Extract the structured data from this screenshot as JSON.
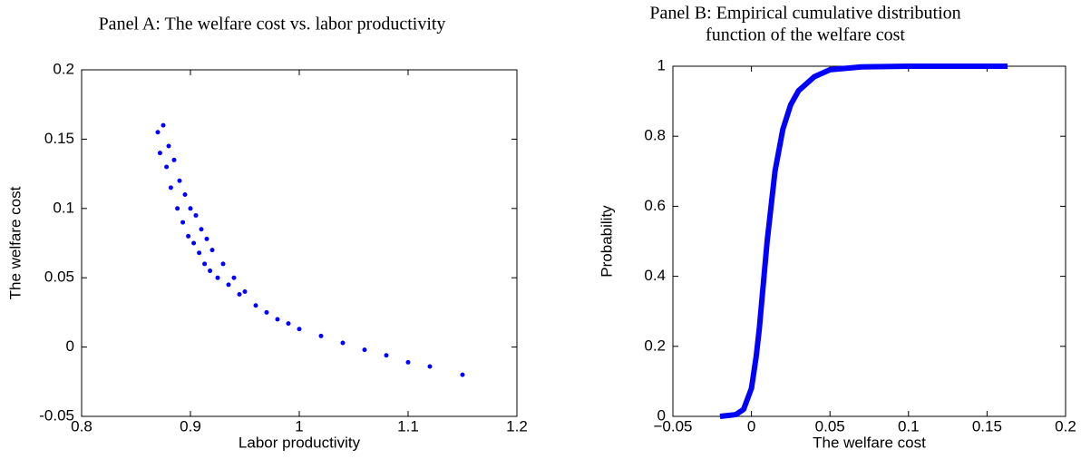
{
  "chart_data": [
    {
      "type": "scatter",
      "title": "Panel A: The welfare cost vs. labor productivity",
      "xlabel": "Labor productivity",
      "ylabel": "The welfare cost",
      "color": "#0000ff",
      "x": [
        0.87,
        0.872,
        0.875,
        0.878,
        0.88,
        0.882,
        0.885,
        0.888,
        0.89,
        0.893,
        0.895,
        0.898,
        0.9,
        0.903,
        0.905,
        0.908,
        0.91,
        0.913,
        0.915,
        0.918,
        0.92,
        0.925,
        0.93,
        0.935,
        0.94,
        0.945,
        0.95,
        0.96,
        0.97,
        0.98,
        0.99,
        1.0,
        1.02,
        1.04,
        1.06,
        1.08,
        1.1,
        1.12,
        1.15
      ],
      "values": [
        0.155,
        0.14,
        0.16,
        0.13,
        0.145,
        0.115,
        0.135,
        0.1,
        0.12,
        0.09,
        0.11,
        0.08,
        0.1,
        0.075,
        0.095,
        0.068,
        0.085,
        0.06,
        0.078,
        0.055,
        0.07,
        0.05,
        0.06,
        0.045,
        0.05,
        0.038,
        0.04,
        0.03,
        0.025,
        0.02,
        0.017,
        0.013,
        0.008,
        0.003,
        -0.002,
        -0.006,
        -0.011,
        -0.014,
        -0.02
      ],
      "xlim": [
        0.8,
        1.2
      ],
      "xticks": [
        0.8,
        0.9,
        1,
        1.1,
        1.2
      ],
      "ylim": [
        -0.05,
        0.2
      ],
      "yticks": [
        -0.05,
        0,
        0.05,
        0.1,
        0.15,
        0.2
      ]
    },
    {
      "type": "line",
      "title": [
        "Panel B: Empirical cumulative distribution",
        "function of the welfare cost"
      ],
      "xlabel": "The welfare cost",
      "ylabel": "Probability",
      "color": "#0000ff",
      "x": [
        -0.02,
        -0.01,
        -0.005,
        0,
        0.003,
        0.005,
        0.008,
        0.01,
        0.013,
        0.015,
        0.02,
        0.025,
        0.03,
        0.04,
        0.05,
        0.07,
        0.1,
        0.163
      ],
      "values": [
        0,
        0.005,
        0.02,
        0.08,
        0.17,
        0.25,
        0.4,
        0.5,
        0.62,
        0.7,
        0.82,
        0.89,
        0.93,
        0.97,
        0.99,
        0.998,
        1,
        1
      ],
      "xlim": [
        -0.05,
        0.2
      ],
      "xticks": [
        {
          "value": -0.05,
          "label": "−0.05"
        },
        0,
        0.05,
        0.1,
        0.15,
        0.2
      ],
      "ylim": [
        0,
        1
      ],
      "yticks": [
        0,
        0.2,
        0.4,
        0.6,
        0.8,
        1
      ]
    }
  ]
}
